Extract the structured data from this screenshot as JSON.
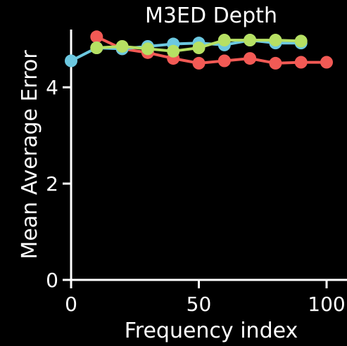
{
  "chart_data": {
    "type": "line",
    "title": "M3ED Depth",
    "xlabel": "Frequency index",
    "ylabel": "Mean Average Error",
    "xlim": [
      0,
      110
    ],
    "ylim": [
      0,
      5.2
    ],
    "x_ticks": [
      0,
      50,
      100
    ],
    "x_tick_labels": [
      "0",
      "50",
      "100"
    ],
    "y_ticks": [
      0,
      2,
      4
    ],
    "y_tick_labels": [
      "0",
      "2",
      "4"
    ],
    "grid": false,
    "legend": null,
    "series": [
      {
        "color": "#f25a55",
        "x": [
          10,
          20,
          30,
          40,
          50,
          60,
          70,
          80,
          90,
          100
        ],
        "values": [
          5.05,
          4.8,
          4.72,
          4.6,
          4.5,
          4.55,
          4.6,
          4.5,
          4.52,
          4.52
        ]
      },
      {
        "color": "#6cc8e0",
        "x": [
          0,
          10,
          20,
          30,
          40,
          50,
          60,
          70,
          80,
          90
        ],
        "values": [
          4.55,
          4.82,
          4.8,
          4.85,
          4.9,
          4.92,
          4.88,
          4.98,
          4.92,
          4.92
        ]
      },
      {
        "color": "#b6e063",
        "x": [
          10,
          20,
          30,
          40,
          50,
          60,
          70,
          80,
          90
        ],
        "values": [
          4.82,
          4.85,
          4.8,
          4.75,
          4.82,
          4.98,
          4.98,
          4.98,
          4.96
        ]
      }
    ]
  }
}
